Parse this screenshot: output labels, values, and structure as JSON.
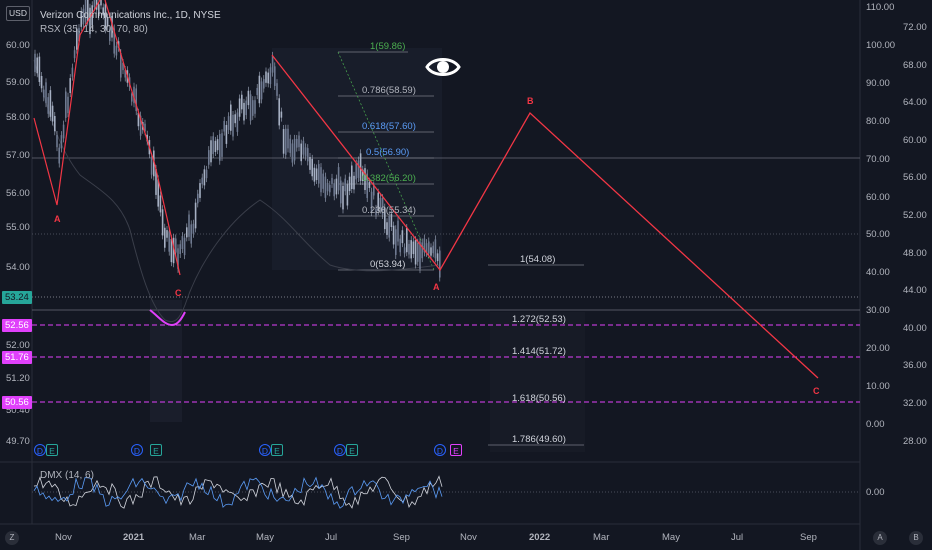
{
  "header": {
    "currency_button": "USD",
    "symbol_title": "Verizon Communications Inc., 1D, NYSE",
    "rsx_indicator": "RSX (35, 14, 30, 70, 80)",
    "dmx_indicator": "DMX (14, 6)"
  },
  "left_price_axis": [
    "60.00",
    "59.00",
    "58.00",
    "57.00",
    "56.00",
    "55.00",
    "54.00",
    "52.00",
    "51.20",
    "50.40",
    "49.70"
  ],
  "left_badges": {
    "current_price": "53.24",
    "level_1": "52.56",
    "level_2": "51.76",
    "level_3": "50.56"
  },
  "right_axis_inner": [
    "110.00",
    "100.00",
    "90.00",
    "80.00",
    "70.00",
    "60.00",
    "50.00",
    "40.00",
    "30.00",
    "20.00",
    "10.00",
    "0.00"
  ],
  "right_axis_outer": [
    "72.00",
    "68.00",
    "64.00",
    "60.00",
    "56.00",
    "52.00",
    "48.00",
    "44.00",
    "40.00",
    "36.00",
    "32.00",
    "28.00"
  ],
  "dmx_axis_label": "0.00",
  "time_axis": [
    "Nov",
    "2021",
    "Mar",
    "May",
    "Jul",
    "Sep",
    "Nov",
    "2022",
    "Mar",
    "May",
    "Jul",
    "Sep"
  ],
  "fib_retracement": [
    "1(59.86)",
    "0.786(58.59)",
    "0.618(57.60)",
    "0.5(56.90)",
    "0.382(56.20)",
    "0.236(55.34)",
    "0(53.94)"
  ],
  "fib_extension": [
    "1(54.08)",
    "1.272(52.53)",
    "1.414(51.72)",
    "1.618(50.56)",
    "1.786(49.60)"
  ],
  "waves": {
    "a_left": "A",
    "c_left": "C",
    "a_right": "A",
    "b_proj": "B",
    "c_proj": "C"
  },
  "events": [
    {
      "d": "D",
      "e": "E"
    },
    {
      "d": "D",
      "e": "E"
    },
    {
      "d": "D",
      "e": "E"
    },
    {
      "d": "D",
      "e": "E"
    },
    {
      "d": "D",
      "e": "E"
    }
  ],
  "bottom_left_button": "Z",
  "bottom_right_buttons": [
    "A",
    "B"
  ],
  "visibility_icon": "eye-icon",
  "colors": {
    "background": "#131722",
    "wave_line": "#f23645",
    "fib_extension_line": "#e040fb",
    "current_price_badge": "#26a69a",
    "level_badge": "#e040fb",
    "fib_green": "#4caf50",
    "fib_blue": "#5b9cf6",
    "candle": "#a6b0c3"
  }
}
